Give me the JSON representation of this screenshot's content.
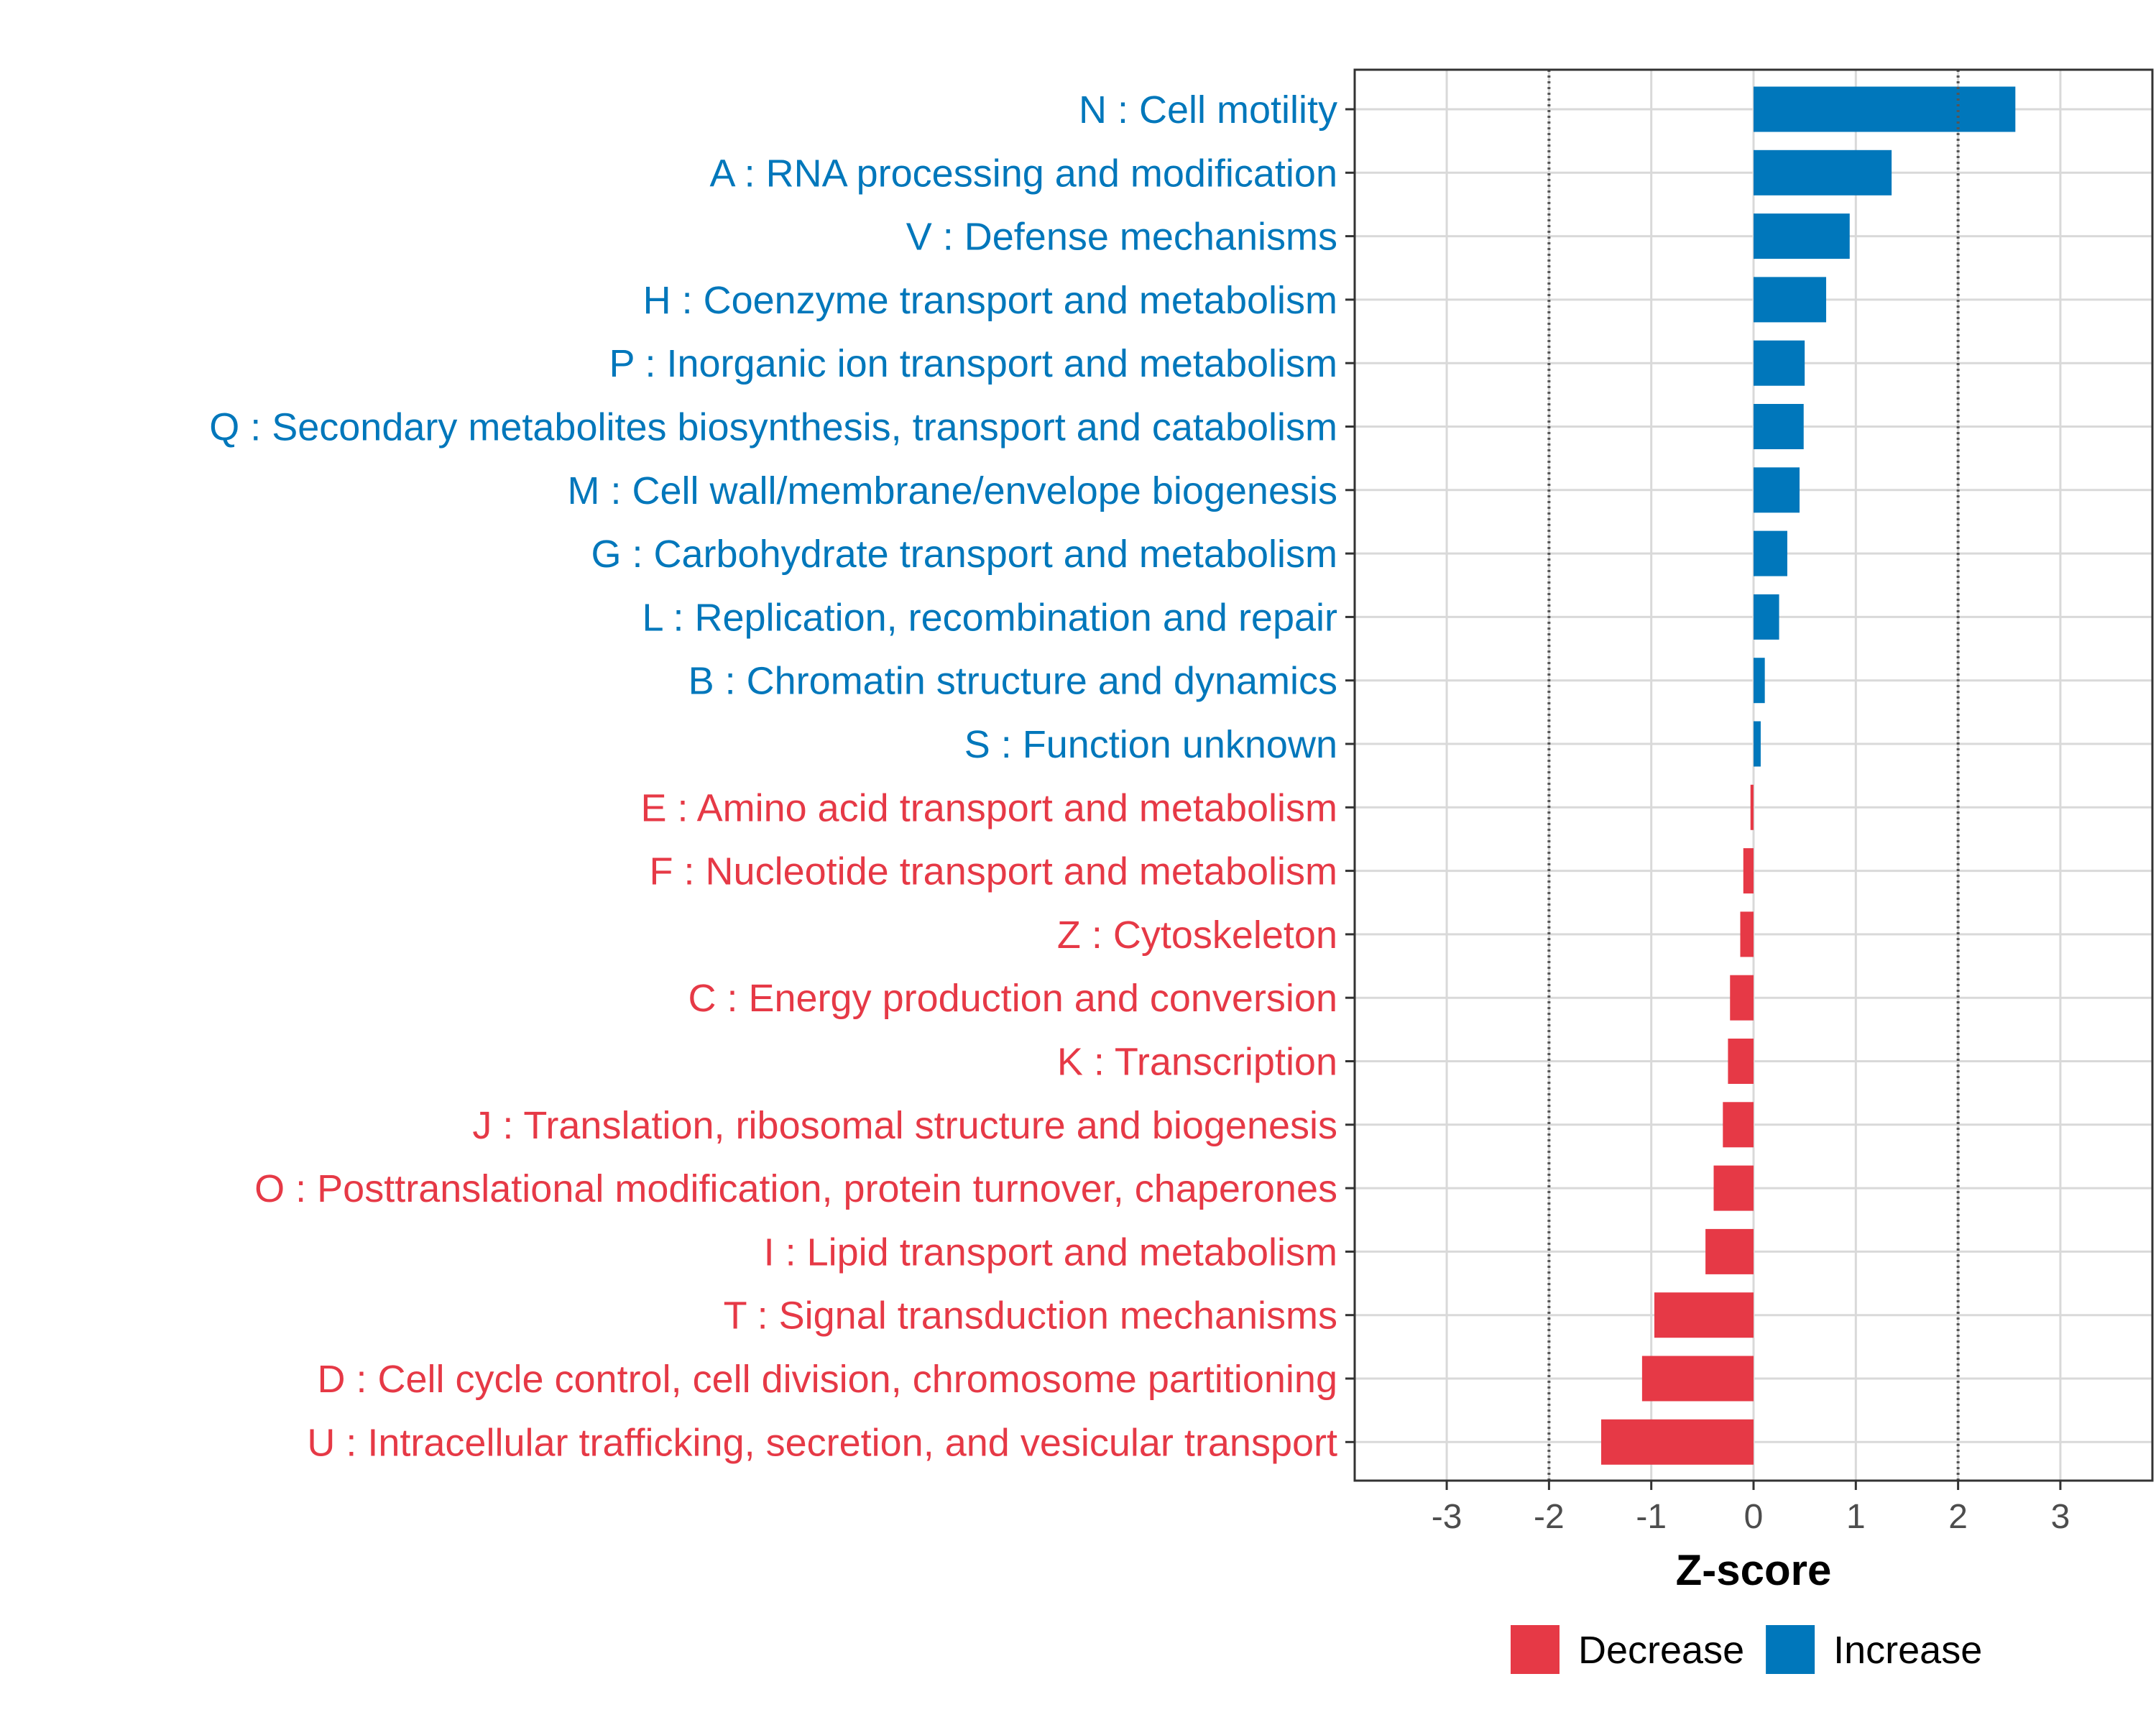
{
  "chart_data": {
    "type": "bar",
    "orientation": "horizontal",
    "title": "",
    "xlabel": "Z-score",
    "ylabel": "",
    "xlim": [
      -3.9,
      3.9
    ],
    "xticks": [
      -3,
      -2,
      -1,
      0,
      1,
      2,
      3
    ],
    "reference_lines": [
      -2,
      2
    ],
    "grid": true,
    "legend_position": "bottom",
    "colors": {
      "Increase": "#0077bb",
      "Decrease": "#e63946",
      "grid": "#d9d9d9",
      "reference": "#555555"
    },
    "legend": [
      {
        "label": "Decrease",
        "group": "Decrease"
      },
      {
        "label": "Increase",
        "group": "Increase"
      }
    ],
    "categories": [
      "N : Cell motility",
      "A : RNA processing and modification",
      "V : Defense mechanisms",
      "H : Coenzyme transport and metabolism",
      "P : Inorganic ion transport and metabolism",
      "Q : Secondary metabolites biosynthesis, transport and catabolism",
      "M : Cell wall/membrane/envelope biogenesis",
      "G : Carbohydrate transport and metabolism",
      "L : Replication, recombination and repair",
      "B : Chromatin structure and dynamics",
      "S : Function unknown",
      "E : Amino acid transport and metabolism",
      "F : Nucleotide transport and metabolism",
      "Z : Cytoskeleton",
      "C : Energy production and conversion",
      "K : Transcription",
      "J : Translation, ribosomal structure and biogenesis",
      "O : Posttranslational modification, protein turnover, chaperones",
      "I : Lipid transport and metabolism",
      "T : Signal transduction mechanisms",
      "D : Cell cycle control, cell division, chromosome partitioning",
      "U : Intracellular trafficking, secretion, and vesicular transport"
    ],
    "values": [
      2.56,
      1.35,
      0.94,
      0.71,
      0.5,
      0.49,
      0.45,
      0.33,
      0.25,
      0.11,
      0.07,
      -0.03,
      -0.1,
      -0.13,
      -0.23,
      -0.25,
      -0.3,
      -0.39,
      -0.47,
      -0.97,
      -1.09,
      -1.49
    ],
    "groups": [
      "Increase",
      "Increase",
      "Increase",
      "Increase",
      "Increase",
      "Increase",
      "Increase",
      "Increase",
      "Increase",
      "Increase",
      "Increase",
      "Decrease",
      "Decrease",
      "Decrease",
      "Decrease",
      "Decrease",
      "Decrease",
      "Decrease",
      "Decrease",
      "Decrease",
      "Decrease",
      "Decrease"
    ]
  }
}
